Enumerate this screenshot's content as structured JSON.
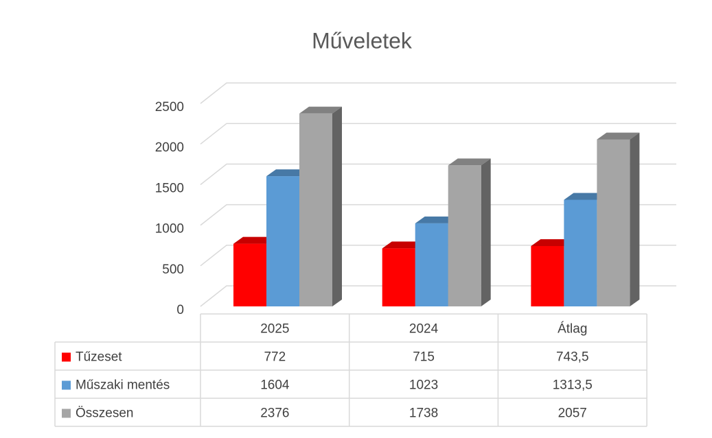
{
  "chart_data": {
    "type": "bar3d",
    "title": "Műveletek",
    "categories": [
      "2025",
      "2024",
      "Átlag"
    ],
    "series": [
      {
        "name": "Tűzeset",
        "color": "#ff0000",
        "values": [
          772,
          715,
          743.5
        ],
        "value_labels": [
          "772",
          "715",
          "743,5"
        ]
      },
      {
        "name": "Műszaki mentés",
        "color": "#5b9bd5",
        "values": [
          1604,
          1023,
          1313.5
        ],
        "value_labels": [
          "1604",
          "1023",
          "1313,5"
        ]
      },
      {
        "name": "Összesen",
        "color": "#a5a5a5",
        "values": [
          2376,
          1738,
          2057
        ],
        "value_labels": [
          "2376",
          "1738",
          "2057"
        ]
      }
    ],
    "ylim": [
      0,
      2500
    ],
    "yticks": [
      0,
      500,
      1000,
      1500,
      2000,
      2500
    ],
    "grid": true,
    "data_table": true
  }
}
